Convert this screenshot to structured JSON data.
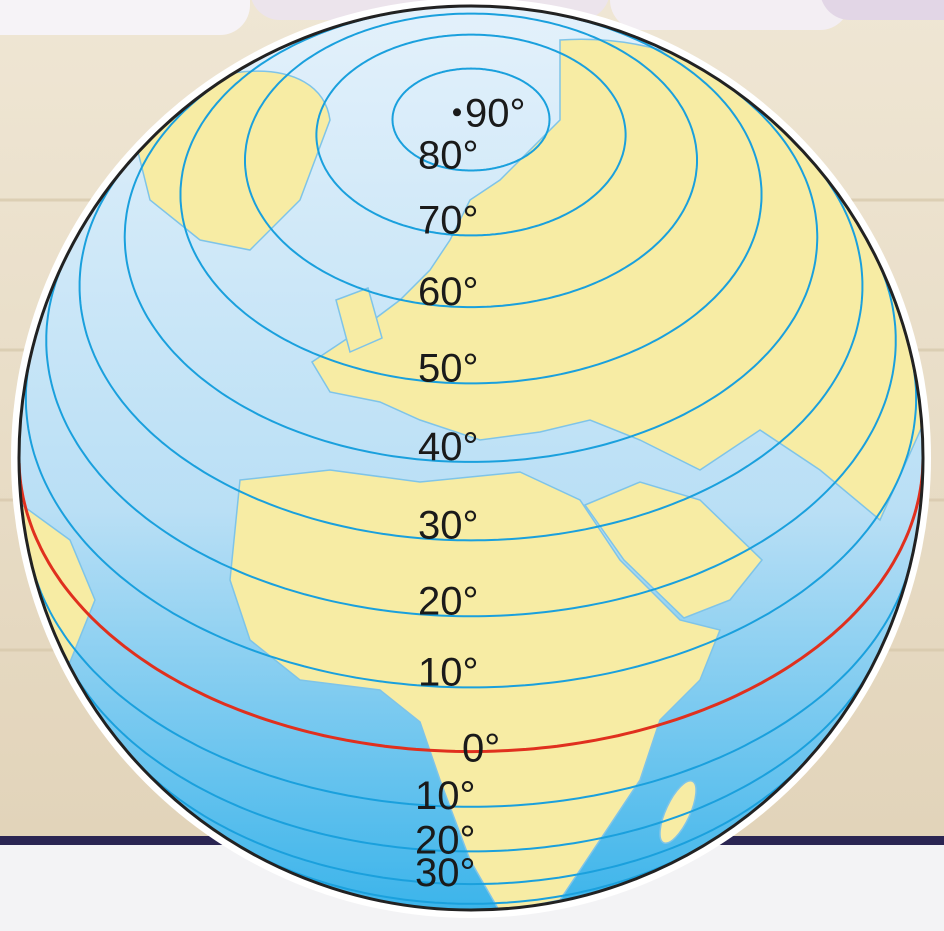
{
  "latitude_labels": [
    "90°",
    "80°",
    "70°",
    "60°",
    "50°",
    "40°",
    "30°",
    "20°",
    "10°",
    "0°",
    "10°",
    "20°",
    "30°"
  ]
}
